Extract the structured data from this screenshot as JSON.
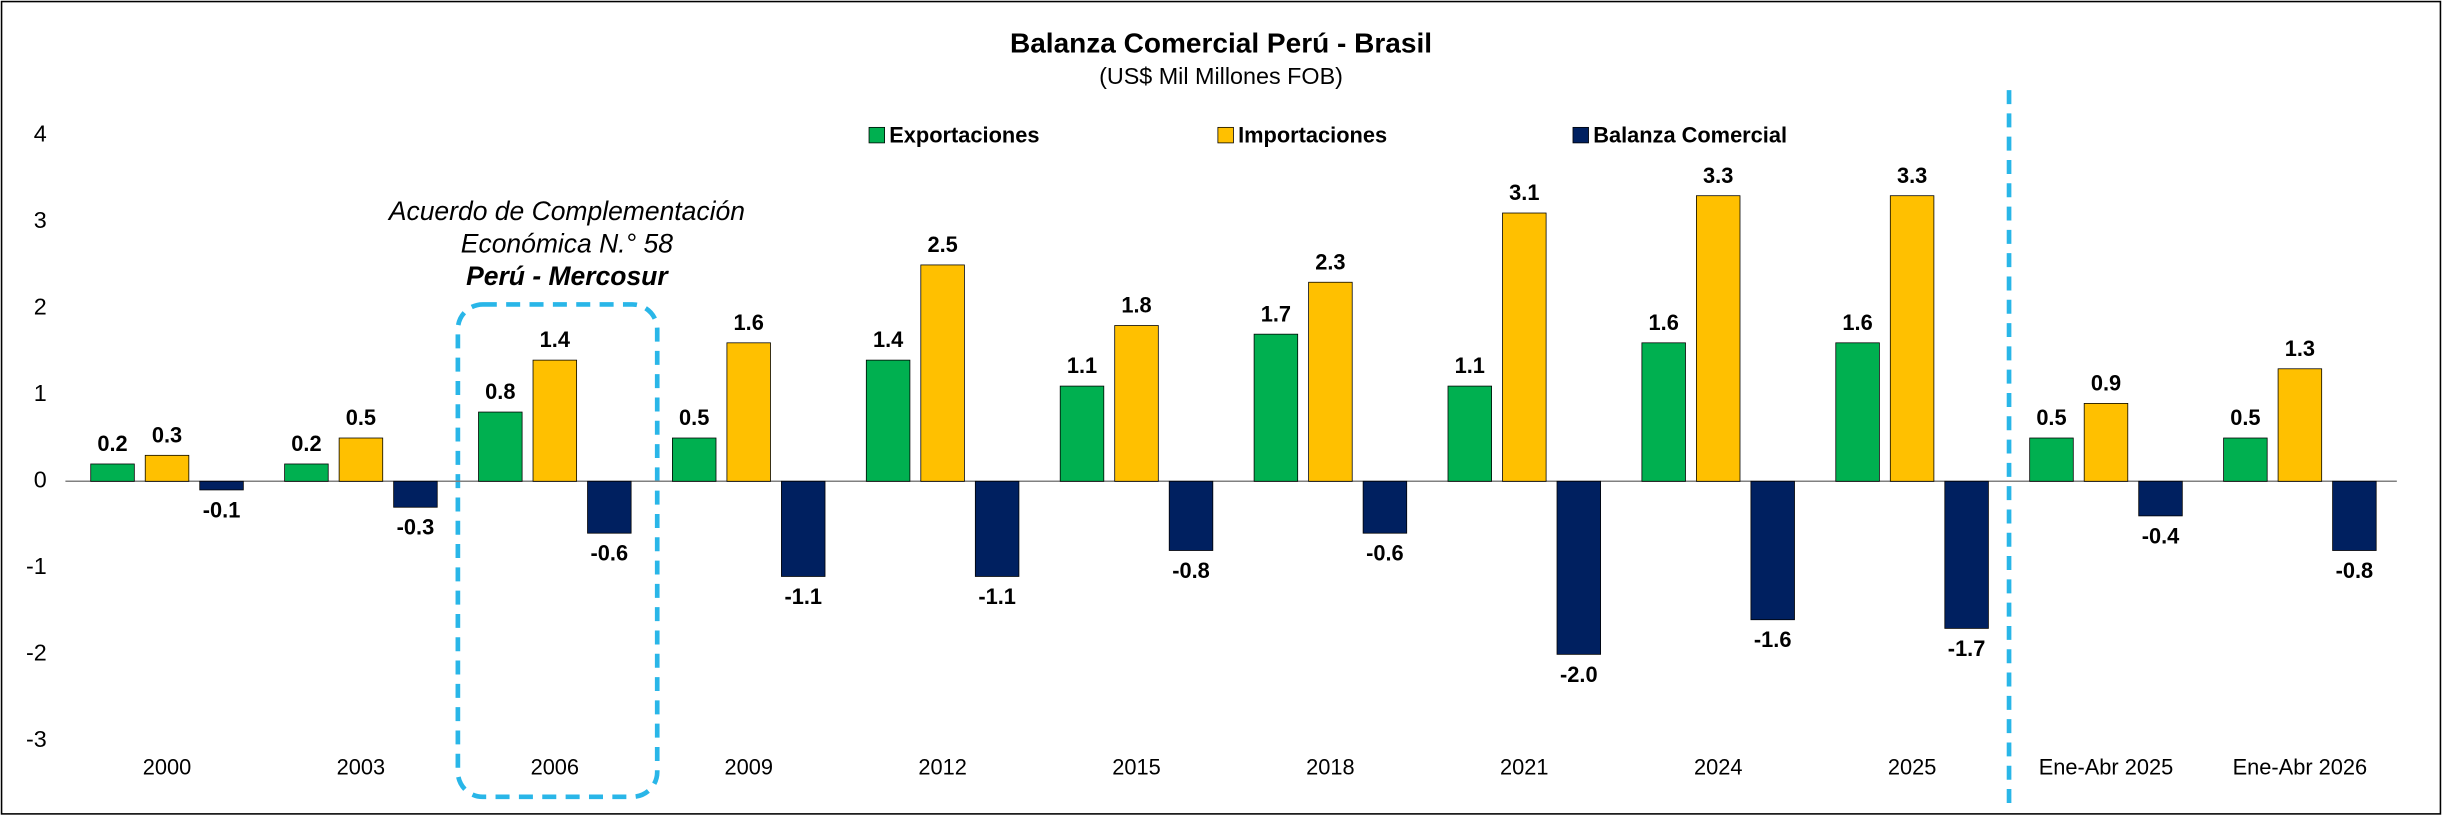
{
  "chart_data": {
    "type": "bar",
    "title": "Balanza Comercial Perú - Brasil",
    "subtitle": "(US$ Mil Millones FOB)",
    "categories": [
      "2000",
      "2003",
      "2006",
      "2009",
      "2012",
      "2015",
      "2018",
      "2021",
      "2024",
      "2025",
      "Ene-Abr 2025",
      "Ene-Abr 2026"
    ],
    "series": [
      {
        "name": "Exportaciones",
        "color": "#00b050",
        "values": [
          0.2,
          0.2,
          0.8,
          0.5,
          1.4,
          1.1,
          1.7,
          1.1,
          1.6,
          1.6,
          0.5,
          0.5
        ]
      },
      {
        "name": "Importaciones",
        "color": "#ffc000",
        "values": [
          0.3,
          0.5,
          1.4,
          1.6,
          2.5,
          1.8,
          2.3,
          3.1,
          3.3,
          3.3,
          0.9,
          1.3
        ]
      },
      {
        "name": "Balanza Comercial",
        "color": "#002060",
        "values": [
          -0.1,
          -0.3,
          -0.6,
          -1.1,
          -1.1,
          -0.8,
          -0.6,
          -2.0,
          -1.6,
          -1.7,
          -0.4,
          -0.8
        ],
        "value_labels": [
          "-0.1",
          "-0.3",
          "-0.6",
          "-1.1",
          "-1.1",
          "-0.8",
          "-0.6",
          "-2.0",
          "-1.6",
          "-1.7",
          "-0.4",
          "-0.8"
        ]
      }
    ],
    "ylim": [
      -3,
      4
    ],
    "yticks": [
      -3,
      -2,
      -1,
      0,
      1,
      2,
      3,
      4
    ],
    "legend": "top",
    "annotations": [
      "Acuerdo de Complementación",
      "Económica N.° 58",
      "Perú - Mercosur"
    ]
  }
}
